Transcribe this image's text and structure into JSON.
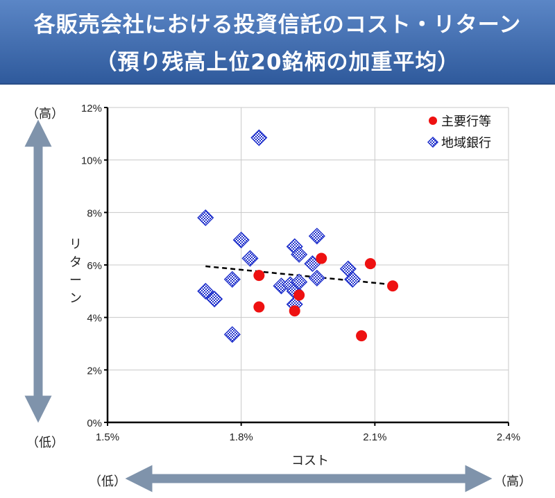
{
  "header": {
    "title_line1": "各販売会社における投資信託のコスト・リターン",
    "title_line2": "（預り残高上位20銘柄の加重平均）"
  },
  "axis_labels": {
    "y_high": "（高）",
    "y_low": "（低）",
    "y_title": "リターン",
    "x_title": "コスト",
    "x_low": "（低）",
    "x_high": "（高）"
  },
  "colors": {
    "header_top": "#5b86c6",
    "header_bottom": "#2f5a9c",
    "arrow": "#7f93ab",
    "major": "#ee1111",
    "regional": "#2233cc"
  },
  "chart_data": {
    "type": "scatter",
    "xlim": [
      1.5,
      2.4
    ],
    "ylim": [
      0,
      12
    ],
    "x_ticks": [
      {
        "value": 1.5,
        "label": "1.5%"
      },
      {
        "value": 1.8,
        "label": "1.8%"
      },
      {
        "value": 2.1,
        "label": "2.1%"
      },
      {
        "value": 2.4,
        "label": "2.4%"
      }
    ],
    "y_ticks": [
      {
        "value": 0,
        "label": "0%"
      },
      {
        "value": 2,
        "label": "2%"
      },
      {
        "value": 4,
        "label": "4%"
      },
      {
        "value": 6,
        "label": "6%"
      },
      {
        "value": 8,
        "label": "8%"
      },
      {
        "value": 10,
        "label": "10%"
      },
      {
        "value": 12,
        "label": "12%"
      }
    ],
    "grid": true,
    "legend_position": "top-right",
    "series": [
      {
        "name": "主要行等",
        "marker": "circle",
        "points": [
          {
            "x": 1.84,
            "y": 5.6
          },
          {
            "x": 1.84,
            "y": 4.4
          },
          {
            "x": 1.92,
            "y": 4.25
          },
          {
            "x": 1.93,
            "y": 4.85
          },
          {
            "x": 1.98,
            "y": 6.25
          },
          {
            "x": 2.07,
            "y": 3.3
          },
          {
            "x": 2.09,
            "y": 6.05
          },
          {
            "x": 2.14,
            "y": 5.2
          }
        ]
      },
      {
        "name": "地域銀行",
        "marker": "diamond",
        "points": [
          {
            "x": 1.72,
            "y": 7.8
          },
          {
            "x": 1.72,
            "y": 5.0
          },
          {
            "x": 1.74,
            "y": 4.7
          },
          {
            "x": 1.78,
            "y": 5.45
          },
          {
            "x": 1.78,
            "y": 3.35
          },
          {
            "x": 1.8,
            "y": 6.95
          },
          {
            "x": 1.82,
            "y": 6.25
          },
          {
            "x": 1.84,
            "y": 10.85
          },
          {
            "x": 1.89,
            "y": 5.2
          },
          {
            "x": 1.91,
            "y": 5.25
          },
          {
            "x": 1.92,
            "y": 6.7
          },
          {
            "x": 1.92,
            "y": 5.0
          },
          {
            "x": 1.92,
            "y": 4.5
          },
          {
            "x": 1.93,
            "y": 6.4
          },
          {
            "x": 1.93,
            "y": 5.35
          },
          {
            "x": 1.96,
            "y": 6.05
          },
          {
            "x": 1.97,
            "y": 7.1
          },
          {
            "x": 1.97,
            "y": 5.5
          },
          {
            "x": 2.04,
            "y": 5.85
          },
          {
            "x": 2.05,
            "y": 5.45
          }
        ]
      }
    ],
    "trendline": {
      "style": "dashed",
      "x": [
        1.72,
        2.14
      ],
      "y": [
        5.95,
        5.25
      ]
    }
  }
}
